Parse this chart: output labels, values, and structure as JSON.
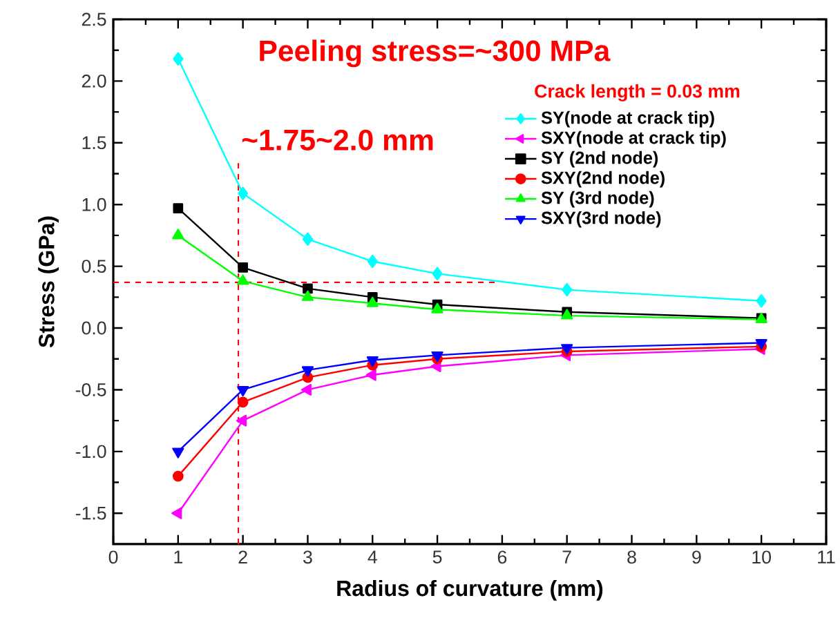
{
  "chart_data": {
    "type": "line",
    "xlabel": "Radius of curvature (mm)",
    "ylabel": "Stress (GPa)",
    "annotations": [
      "Peeling stress=~300 MPa",
      "~1.75~2.0 mm",
      "Crack length = 0.03 mm"
    ],
    "x": [
      1,
      2,
      3,
      4,
      5,
      7,
      10
    ],
    "series": [
      {
        "name": "SY(node at crack tip)",
        "color": "#00ffff",
        "marker": "diamond",
        "values": [
          2.18,
          1.09,
          0.72,
          0.54,
          0.44,
          0.31,
          0.22
        ]
      },
      {
        "name": "SXY(node at crack tip)",
        "color": "#ff00ff",
        "marker": "triangle-left",
        "values": [
          -1.5,
          -0.75,
          -0.5,
          -0.38,
          -0.31,
          -0.22,
          -0.17
        ]
      },
      {
        "name": "SY (2nd node)",
        "color": "#000000",
        "marker": "square",
        "values": [
          0.97,
          0.49,
          0.32,
          0.25,
          0.19,
          0.13,
          0.08
        ]
      },
      {
        "name": "SXY(2nd node)",
        "color": "#ff0000",
        "marker": "circle",
        "values": [
          -1.2,
          -0.6,
          -0.4,
          -0.3,
          -0.25,
          -0.19,
          -0.15
        ]
      },
      {
        "name": "SY (3rd node)",
        "color": "#00ff00",
        "marker": "triangle",
        "values": [
          0.75,
          0.38,
          0.25,
          0.2,
          0.15,
          0.1,
          0.07
        ]
      },
      {
        "name": "SXY(3rd node)",
        "color": "#0000ff",
        "marker": "triangle-down",
        "values": [
          -1.0,
          -0.5,
          -0.34,
          -0.26,
          -0.22,
          -0.16,
          -0.12
        ]
      }
    ],
    "xlim": [
      0,
      11
    ],
    "ylim": [
      -1.75,
      2.5
    ],
    "xticks": [
      0,
      1,
      2,
      3,
      4,
      5,
      6,
      7,
      8,
      9,
      10,
      11
    ],
    "yticks": [
      {
        "value": -1.5,
        "label": "-1.5"
      },
      {
        "value": -1.0,
        "label": "-1.0"
      },
      {
        "value": -0.5,
        "label": "-0.5"
      },
      {
        "value": 0,
        "label": "0.0"
      },
      {
        "value": 0.5,
        "label": "0.5"
      },
      {
        "value": 1.0,
        "label": "1.0"
      },
      {
        "value": 1.5,
        "label": "1.5"
      },
      {
        "value": 2.0,
        "label": "2.0"
      },
      {
        "value": 2.5,
        "label": "2.5"
      }
    ],
    "ref_lines": [
      {
        "axis": "x",
        "value": 1.93,
        "color": "#ff0000",
        "line_style": "dashed"
      },
      {
        "axis": "y",
        "value": 0.37,
        "color": "#ff0000",
        "line_style": "dashed"
      }
    ],
    "legend": "top right",
    "line_style": "solid"
  }
}
